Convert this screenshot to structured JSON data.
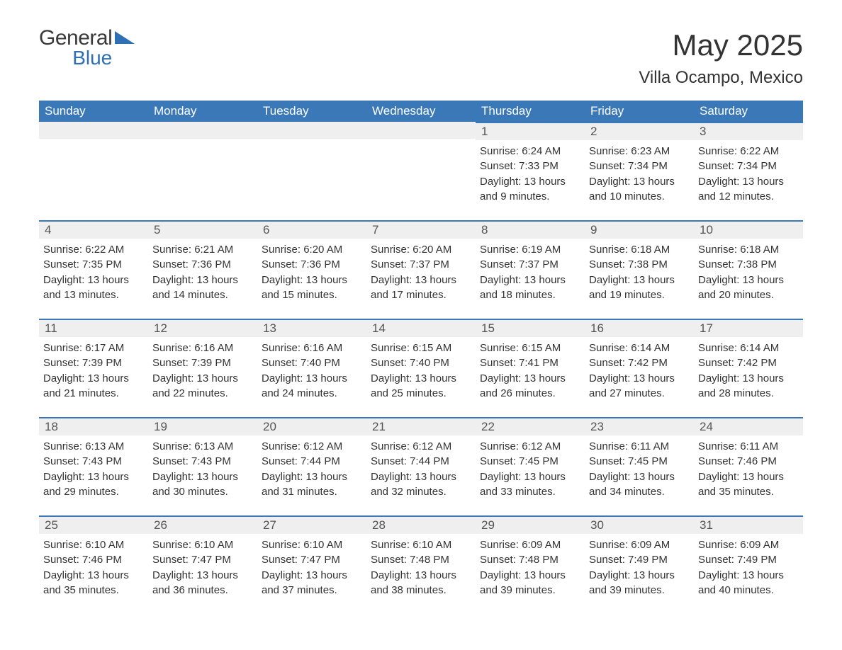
{
  "logo": {
    "general": "General",
    "blue": "Blue"
  },
  "title": "May 2025",
  "location": "Villa Ocampo, Mexico",
  "theme": {
    "header_bg": "#3b78b8",
    "header_text": "#ffffff",
    "daynum_bg": "#efefef",
    "daynum_border": "#3b78b8",
    "body_text": "#333333",
    "logo_blue": "#2f6fb3",
    "logo_gray": "#3a3a3a"
  },
  "dayHeaders": [
    "Sunday",
    "Monday",
    "Tuesday",
    "Wednesday",
    "Thursday",
    "Friday",
    "Saturday"
  ],
  "weeks": [
    [
      null,
      null,
      null,
      null,
      {
        "n": "1",
        "sr": "Sunrise: 6:24 AM",
        "ss": "Sunset: 7:33 PM",
        "d1": "Daylight: 13 hours",
        "d2": "and 9 minutes."
      },
      {
        "n": "2",
        "sr": "Sunrise: 6:23 AM",
        "ss": "Sunset: 7:34 PM",
        "d1": "Daylight: 13 hours",
        "d2": "and 10 minutes."
      },
      {
        "n": "3",
        "sr": "Sunrise: 6:22 AM",
        "ss": "Sunset: 7:34 PM",
        "d1": "Daylight: 13 hours",
        "d2": "and 12 minutes."
      }
    ],
    [
      {
        "n": "4",
        "sr": "Sunrise: 6:22 AM",
        "ss": "Sunset: 7:35 PM",
        "d1": "Daylight: 13 hours",
        "d2": "and 13 minutes."
      },
      {
        "n": "5",
        "sr": "Sunrise: 6:21 AM",
        "ss": "Sunset: 7:36 PM",
        "d1": "Daylight: 13 hours",
        "d2": "and 14 minutes."
      },
      {
        "n": "6",
        "sr": "Sunrise: 6:20 AM",
        "ss": "Sunset: 7:36 PM",
        "d1": "Daylight: 13 hours",
        "d2": "and 15 minutes."
      },
      {
        "n": "7",
        "sr": "Sunrise: 6:20 AM",
        "ss": "Sunset: 7:37 PM",
        "d1": "Daylight: 13 hours",
        "d2": "and 17 minutes."
      },
      {
        "n": "8",
        "sr": "Sunrise: 6:19 AM",
        "ss": "Sunset: 7:37 PM",
        "d1": "Daylight: 13 hours",
        "d2": "and 18 minutes."
      },
      {
        "n": "9",
        "sr": "Sunrise: 6:18 AM",
        "ss": "Sunset: 7:38 PM",
        "d1": "Daylight: 13 hours",
        "d2": "and 19 minutes."
      },
      {
        "n": "10",
        "sr": "Sunrise: 6:18 AM",
        "ss": "Sunset: 7:38 PM",
        "d1": "Daylight: 13 hours",
        "d2": "and 20 minutes."
      }
    ],
    [
      {
        "n": "11",
        "sr": "Sunrise: 6:17 AM",
        "ss": "Sunset: 7:39 PM",
        "d1": "Daylight: 13 hours",
        "d2": "and 21 minutes."
      },
      {
        "n": "12",
        "sr": "Sunrise: 6:16 AM",
        "ss": "Sunset: 7:39 PM",
        "d1": "Daylight: 13 hours",
        "d2": "and 22 minutes."
      },
      {
        "n": "13",
        "sr": "Sunrise: 6:16 AM",
        "ss": "Sunset: 7:40 PM",
        "d1": "Daylight: 13 hours",
        "d2": "and 24 minutes."
      },
      {
        "n": "14",
        "sr": "Sunrise: 6:15 AM",
        "ss": "Sunset: 7:40 PM",
        "d1": "Daylight: 13 hours",
        "d2": "and 25 minutes."
      },
      {
        "n": "15",
        "sr": "Sunrise: 6:15 AM",
        "ss": "Sunset: 7:41 PM",
        "d1": "Daylight: 13 hours",
        "d2": "and 26 minutes."
      },
      {
        "n": "16",
        "sr": "Sunrise: 6:14 AM",
        "ss": "Sunset: 7:42 PM",
        "d1": "Daylight: 13 hours",
        "d2": "and 27 minutes."
      },
      {
        "n": "17",
        "sr": "Sunrise: 6:14 AM",
        "ss": "Sunset: 7:42 PM",
        "d1": "Daylight: 13 hours",
        "d2": "and 28 minutes."
      }
    ],
    [
      {
        "n": "18",
        "sr": "Sunrise: 6:13 AM",
        "ss": "Sunset: 7:43 PM",
        "d1": "Daylight: 13 hours",
        "d2": "and 29 minutes."
      },
      {
        "n": "19",
        "sr": "Sunrise: 6:13 AM",
        "ss": "Sunset: 7:43 PM",
        "d1": "Daylight: 13 hours",
        "d2": "and 30 minutes."
      },
      {
        "n": "20",
        "sr": "Sunrise: 6:12 AM",
        "ss": "Sunset: 7:44 PM",
        "d1": "Daylight: 13 hours",
        "d2": "and 31 minutes."
      },
      {
        "n": "21",
        "sr": "Sunrise: 6:12 AM",
        "ss": "Sunset: 7:44 PM",
        "d1": "Daylight: 13 hours",
        "d2": "and 32 minutes."
      },
      {
        "n": "22",
        "sr": "Sunrise: 6:12 AM",
        "ss": "Sunset: 7:45 PM",
        "d1": "Daylight: 13 hours",
        "d2": "and 33 minutes."
      },
      {
        "n": "23",
        "sr": "Sunrise: 6:11 AM",
        "ss": "Sunset: 7:45 PM",
        "d1": "Daylight: 13 hours",
        "d2": "and 34 minutes."
      },
      {
        "n": "24",
        "sr": "Sunrise: 6:11 AM",
        "ss": "Sunset: 7:46 PM",
        "d1": "Daylight: 13 hours",
        "d2": "and 35 minutes."
      }
    ],
    [
      {
        "n": "25",
        "sr": "Sunrise: 6:10 AM",
        "ss": "Sunset: 7:46 PM",
        "d1": "Daylight: 13 hours",
        "d2": "and 35 minutes."
      },
      {
        "n": "26",
        "sr": "Sunrise: 6:10 AM",
        "ss": "Sunset: 7:47 PM",
        "d1": "Daylight: 13 hours",
        "d2": "and 36 minutes."
      },
      {
        "n": "27",
        "sr": "Sunrise: 6:10 AM",
        "ss": "Sunset: 7:47 PM",
        "d1": "Daylight: 13 hours",
        "d2": "and 37 minutes."
      },
      {
        "n": "28",
        "sr": "Sunrise: 6:10 AM",
        "ss": "Sunset: 7:48 PM",
        "d1": "Daylight: 13 hours",
        "d2": "and 38 minutes."
      },
      {
        "n": "29",
        "sr": "Sunrise: 6:09 AM",
        "ss": "Sunset: 7:48 PM",
        "d1": "Daylight: 13 hours",
        "d2": "and 39 minutes."
      },
      {
        "n": "30",
        "sr": "Sunrise: 6:09 AM",
        "ss": "Sunset: 7:49 PM",
        "d1": "Daylight: 13 hours",
        "d2": "and 39 minutes."
      },
      {
        "n": "31",
        "sr": "Sunrise: 6:09 AM",
        "ss": "Sunset: 7:49 PM",
        "d1": "Daylight: 13 hours",
        "d2": "and 40 minutes."
      }
    ]
  ]
}
